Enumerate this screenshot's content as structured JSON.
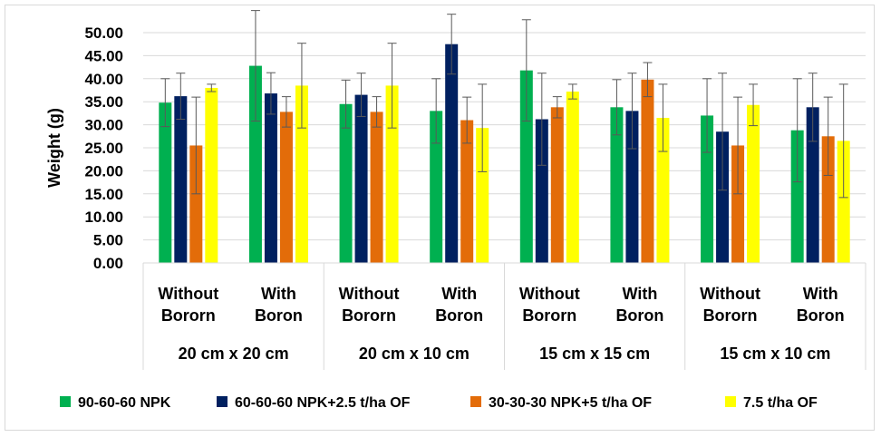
{
  "chart_data": {
    "type": "bar",
    "title": "",
    "xlabel": "",
    "ylabel": "Weight (g)",
    "ylim": [
      0,
      50
    ],
    "yticks": [
      "0.00",
      "5.00",
      "10.00",
      "15.00",
      "20.00",
      "25.00",
      "30.00",
      "35.00",
      "40.00",
      "45.00",
      "50.00"
    ],
    "grid": true,
    "legend_position": "bottom",
    "groups": [
      {
        "label": "20 cm x 20 cm",
        "subcategories": [
          [
            "Without",
            "Bororn"
          ],
          [
            "With",
            "Boron"
          ]
        ]
      },
      {
        "label": "20 cm x 10 cm",
        "subcategories": [
          [
            "Without",
            "Bororn"
          ],
          [
            "With",
            "Boron"
          ]
        ]
      },
      {
        "label": "15 cm x 15 cm",
        "subcategories": [
          [
            "Without",
            "Bororn"
          ],
          [
            "With",
            "Boron"
          ]
        ]
      },
      {
        "label": "15 cm x 10 cm",
        "subcategories": [
          [
            "Without",
            "Bororn"
          ],
          [
            "With",
            "Boron"
          ]
        ]
      }
    ],
    "series": [
      {
        "name": "90-60-60 NPK",
        "color": "#00b050",
        "values": [
          34.8,
          42.8,
          34.5,
          33.0,
          41.8,
          33.8,
          32.0,
          28.8
        ],
        "errors": [
          5.2,
          12.0,
          5.2,
          7.0,
          11.0,
          6.0,
          8.0,
          11.2
        ]
      },
      {
        "name": "60-60-60 NPK+2.5 t/ha OF",
        "color": "#002060",
        "values": [
          36.2,
          36.8,
          36.5,
          47.5,
          31.2,
          33.0,
          28.5,
          33.8
        ],
        "errors": [
          5.0,
          4.5,
          4.7,
          6.5,
          10.0,
          8.2,
          12.7,
          7.4
        ]
      },
      {
        "name": "30-30-30 NPK+5 t/ha OF",
        "color": "#e36c09",
        "values": [
          25.5,
          32.8,
          32.8,
          31.0,
          33.8,
          39.8,
          25.5,
          27.5
        ],
        "errors": [
          10.5,
          3.3,
          3.3,
          5.0,
          2.3,
          3.7,
          10.5,
          8.5
        ]
      },
      {
        "name": "7.5 t/ha OF",
        "color": "#ffff00",
        "values": [
          38.0,
          38.5,
          38.5,
          29.3,
          37.2,
          31.5,
          34.3,
          26.5
        ],
        "errors": [
          0.8,
          9.2,
          9.2,
          9.5,
          1.6,
          7.3,
          4.5,
          12.3
        ]
      }
    ]
  }
}
